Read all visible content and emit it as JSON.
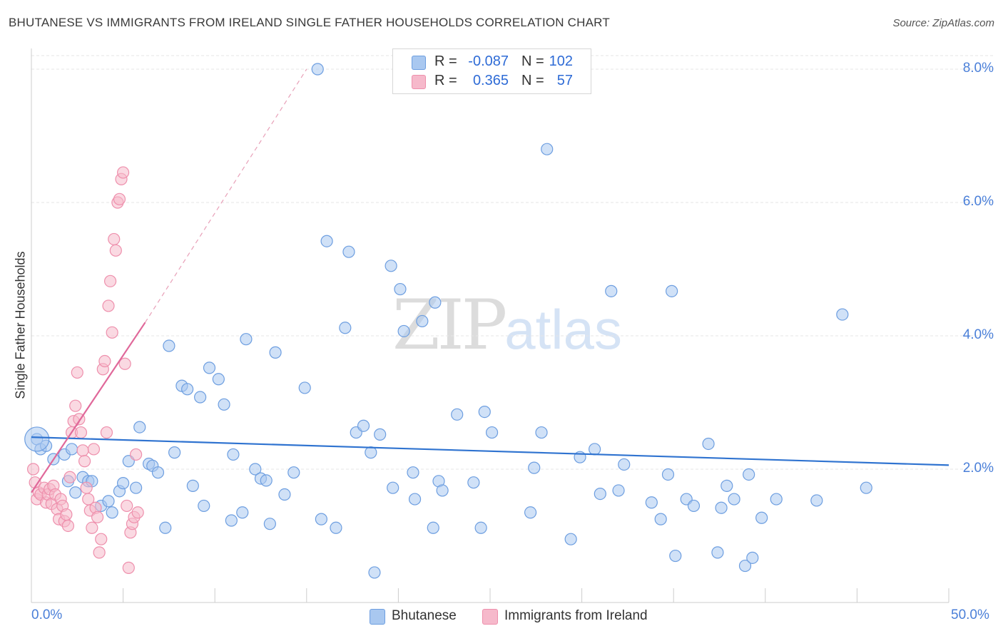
{
  "title": "BHUTANESE VS IMMIGRANTS FROM IRELAND SINGLE FATHER HOUSEHOLDS CORRELATION CHART",
  "source": "Source: ZipAtlas.com",
  "watermark": {
    "zip": "ZIP",
    "atlas": "atlas"
  },
  "colors": {
    "blue_fill": "#a9c8f0",
    "blue_stroke": "#6d9ee0",
    "blue_line": "#2f73d0",
    "pink_fill": "#f6b9cb",
    "pink_stroke": "#ee8fac",
    "pink_line": "#e0689a",
    "grid": "#e6e6e6",
    "axis_text": "#4a7fd8"
  },
  "legend_top": {
    "rows": [
      {
        "swatch": "blue",
        "r_label": "R =",
        "r_value": "-0.087",
        "n_label": "N =",
        "n_value": "102"
      },
      {
        "swatch": "pink",
        "r_label": "R =",
        "r_value": "0.365",
        "n_label": "N =",
        "n_value": "57"
      }
    ]
  },
  "legend_bottom": [
    {
      "label": "Bhutanese",
      "swatch": "blue"
    },
    {
      "label": "Immigrants from Ireland",
      "swatch": "pink"
    }
  ],
  "chart_data": {
    "type": "scatter",
    "ylabel": "Single Father Households",
    "xlabel": "",
    "xlim": [
      0,
      50
    ],
    "ylim": [
      0,
      8.0
    ],
    "x_tick_labels": [
      "0.0%",
      "50.0%"
    ],
    "y_tick_labels": [
      "2.0%",
      "4.0%",
      "6.0%",
      "8.0%"
    ],
    "y_ticks": [
      2,
      4,
      6,
      8
    ],
    "grid": true,
    "series": [
      {
        "name": "Bhutanese",
        "color": "blue",
        "trend": {
          "x": [
            0,
            50
          ],
          "y": [
            2.48,
            2.06
          ]
        },
        "points": [
          [
            0.3,
            2.45
          ],
          [
            0.5,
            2.3
          ],
          [
            0.8,
            2.35
          ],
          [
            1.2,
            2.15
          ],
          [
            1.8,
            2.22
          ],
          [
            2.2,
            2.3
          ],
          [
            2.0,
            1.82
          ],
          [
            2.4,
            1.65
          ],
          [
            2.8,
            1.88
          ],
          [
            3.1,
            1.82
          ],
          [
            3.3,
            1.82
          ],
          [
            3.8,
            1.45
          ],
          [
            4.2,
            1.52
          ],
          [
            4.4,
            1.35
          ],
          [
            4.8,
            1.67
          ],
          [
            5.0,
            1.79
          ],
          [
            5.3,
            2.12
          ],
          [
            5.7,
            1.72
          ],
          [
            5.9,
            2.63
          ],
          [
            6.4,
            2.08
          ],
          [
            6.6,
            2.05
          ],
          [
            6.9,
            1.95
          ],
          [
            7.3,
            1.12
          ],
          [
            7.5,
            3.85
          ],
          [
            7.8,
            2.25
          ],
          [
            8.2,
            3.25
          ],
          [
            8.5,
            3.2
          ],
          [
            8.8,
            1.75
          ],
          [
            9.2,
            3.08
          ],
          [
            9.4,
            1.45
          ],
          [
            9.7,
            3.52
          ],
          [
            10.2,
            3.35
          ],
          [
            10.5,
            2.97
          ],
          [
            10.9,
            1.23
          ],
          [
            11.0,
            2.22
          ],
          [
            11.5,
            1.35
          ],
          [
            11.7,
            3.95
          ],
          [
            12.2,
            2.0
          ],
          [
            12.5,
            1.86
          ],
          [
            12.8,
            1.83
          ],
          [
            13.0,
            1.18
          ],
          [
            13.3,
            3.75
          ],
          [
            13.8,
            1.62
          ],
          [
            14.3,
            1.95
          ],
          [
            14.9,
            3.22
          ],
          [
            15.6,
            8.0
          ],
          [
            15.8,
            1.25
          ],
          [
            16.1,
            5.42
          ],
          [
            16.6,
            1.12
          ],
          [
            17.1,
            4.12
          ],
          [
            17.3,
            5.26
          ],
          [
            17.7,
            2.55
          ],
          [
            18.1,
            2.65
          ],
          [
            18.5,
            2.25
          ],
          [
            18.7,
            0.45
          ],
          [
            19.0,
            2.52
          ],
          [
            19.6,
            5.05
          ],
          [
            19.7,
            1.72
          ],
          [
            20.1,
            4.7
          ],
          [
            20.3,
            4.07
          ],
          [
            20.8,
            1.95
          ],
          [
            20.9,
            1.55
          ],
          [
            21.3,
            4.22
          ],
          [
            21.9,
            1.12
          ],
          [
            22.0,
            4.5
          ],
          [
            22.2,
            1.82
          ],
          [
            22.4,
            1.68
          ],
          [
            23.2,
            2.82
          ],
          [
            24.1,
            1.8
          ],
          [
            24.5,
            1.12
          ],
          [
            24.7,
            2.86
          ],
          [
            25.1,
            2.55
          ],
          [
            27.2,
            1.35
          ],
          [
            27.4,
            2.02
          ],
          [
            27.8,
            2.55
          ],
          [
            28.1,
            6.8
          ],
          [
            29.4,
            0.95
          ],
          [
            29.9,
            2.18
          ],
          [
            30.7,
            2.3
          ],
          [
            31.0,
            1.63
          ],
          [
            31.6,
            4.67
          ],
          [
            32.0,
            1.68
          ],
          [
            32.3,
            2.07
          ],
          [
            33.8,
            1.5
          ],
          [
            34.3,
            1.25
          ],
          [
            34.7,
            1.92
          ],
          [
            34.9,
            4.67
          ],
          [
            35.1,
            0.7
          ],
          [
            35.7,
            1.55
          ],
          [
            36.1,
            1.45
          ],
          [
            36.9,
            2.38
          ],
          [
            37.4,
            0.75
          ],
          [
            37.6,
            1.42
          ],
          [
            37.9,
            1.75
          ],
          [
            38.3,
            1.55
          ],
          [
            38.9,
            0.55
          ],
          [
            39.1,
            1.92
          ],
          [
            39.3,
            0.67
          ],
          [
            39.8,
            1.27
          ],
          [
            40.6,
            1.55
          ],
          [
            42.8,
            1.53
          ],
          [
            44.2,
            4.32
          ],
          [
            45.5,
            1.72
          ]
        ]
      },
      {
        "name": "Immigrants from Ireland",
        "color": "pink",
        "trend": {
          "x": [
            0,
            6.2
          ],
          "y": [
            1.65,
            4.2
          ],
          "extended_to": [
            15.0,
            8.0
          ]
        },
        "points": [
          [
            0.1,
            2.0
          ],
          [
            0.2,
            1.8
          ],
          [
            0.3,
            1.55
          ],
          [
            0.4,
            1.65
          ],
          [
            0.5,
            1.62
          ],
          [
            0.7,
            1.72
          ],
          [
            0.8,
            1.5
          ],
          [
            0.9,
            1.62
          ],
          [
            1.0,
            1.7
          ],
          [
            1.1,
            1.48
          ],
          [
            1.2,
            1.75
          ],
          [
            1.3,
            1.62
          ],
          [
            1.4,
            1.4
          ],
          [
            1.5,
            1.25
          ],
          [
            1.6,
            1.55
          ],
          [
            1.7,
            1.45
          ],
          [
            1.8,
            1.22
          ],
          [
            1.9,
            1.32
          ],
          [
            2.0,
            1.15
          ],
          [
            2.1,
            1.88
          ],
          [
            2.2,
            2.55
          ],
          [
            2.3,
            2.72
          ],
          [
            2.4,
            2.95
          ],
          [
            2.5,
            3.45
          ],
          [
            2.6,
            2.75
          ],
          [
            2.7,
            2.55
          ],
          [
            2.8,
            2.28
          ],
          [
            2.9,
            2.12
          ],
          [
            3.0,
            1.72
          ],
          [
            3.1,
            1.55
          ],
          [
            3.2,
            1.38
          ],
          [
            3.3,
            1.12
          ],
          [
            3.4,
            2.3
          ],
          [
            3.5,
            1.42
          ],
          [
            3.6,
            1.28
          ],
          [
            3.7,
            0.75
          ],
          [
            3.8,
            0.95
          ],
          [
            3.9,
            3.5
          ],
          [
            4.0,
            3.62
          ],
          [
            4.1,
            2.55
          ],
          [
            4.2,
            4.45
          ],
          [
            4.3,
            4.82
          ],
          [
            4.4,
            4.05
          ],
          [
            4.5,
            5.45
          ],
          [
            4.6,
            5.28
          ],
          [
            4.7,
            6.0
          ],
          [
            4.8,
            6.05
          ],
          [
            4.9,
            6.35
          ],
          [
            5.0,
            6.45
          ],
          [
            5.1,
            3.58
          ],
          [
            5.2,
            1.45
          ],
          [
            5.3,
            0.52
          ],
          [
            5.4,
            1.05
          ],
          [
            5.5,
            1.18
          ],
          [
            5.6,
            1.28
          ],
          [
            5.7,
            2.22
          ],
          [
            5.8,
            1.35
          ]
        ]
      }
    ]
  }
}
